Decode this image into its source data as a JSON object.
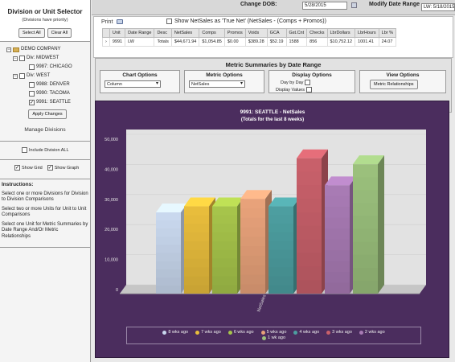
{
  "sidebar": {
    "title": "Division or Unit Selector",
    "subtitle": "(Divisions have priority)",
    "select_all": "Select All",
    "clear_all": "Clear All",
    "tree": {
      "company": "DEMO COMPANY",
      "div_midwest": "Div: MIDWEST",
      "chicago": "9987: CHICAGO",
      "div_west": "Div: WEST",
      "denver": "9988: DENVER",
      "tacoma": "9990: TACOMA",
      "seattle": "9991: SEATTLE"
    },
    "apply_changes": "Apply Changes",
    "manage_divisions": "Manage Divisions",
    "include_division_all": "Include Division ALL",
    "show_grid": "Show Grid",
    "show_graph": "Show Graph",
    "instructions_title": "Instructions:",
    "instructions": [
      "Select one or more Divisions for Division to Division Comparisons",
      "Select two or more Units for Unit to Unit Comparisons",
      "Select one Unit for Metric Summaries by Date Range And/Or Metric Relationships"
    ]
  },
  "topbar": {
    "change_dob_label": "Change DOB:",
    "dob_value": "5/28/2015",
    "modify_range_label": "Modify Date Range",
    "range_value": "LW: 5/18/2015"
  },
  "summary": {
    "print": "Print",
    "show_net_label": "Show NetSales as 'True Net' (NetSales - (Comps + Promos))",
    "headers": [
      "Unit",
      "Date Range",
      "Desc",
      "NetSales",
      "Comps",
      "Promos",
      "Voids",
      "GCA",
      "Gst.Cnt",
      "Checks",
      "LbrDollars",
      "LbrHours",
      "Lbr %"
    ],
    "row": {
      "arrow": "›",
      "cells": [
        "9991",
        "LW",
        "Totals",
        "$44,671.94",
        "$1,054.85",
        "$0.00",
        "$389.28",
        "$52.19",
        "1588",
        "856",
        "$10,752.12",
        "1001.41",
        "24.07"
      ]
    }
  },
  "metric": {
    "title": "Metric Summaries by Date Range",
    "chart_options": "Chart Options",
    "chart_type": "Column",
    "metric_options": "Metric Options",
    "metric_value": "NetSales",
    "display_options": "Display Options",
    "day_by_day": "Day by Day",
    "display_values": "Display Values",
    "view_options": "View Options",
    "metric_relationships": "Metric Relationships"
  },
  "chart_data": {
    "type": "bar",
    "title": "9991: SEATTLE - NetSales",
    "subtitle": "(Totals for the last 8 weeks)",
    "categories": [
      "NetSales"
    ],
    "ylim": [
      0,
      50000
    ],
    "yticks": [
      "0",
      "10,000",
      "20,000",
      "30,000",
      "40,000",
      "50,000"
    ],
    "series": [
      {
        "name": "8 wks ago",
        "values": [
          27000
        ],
        "color": "#c9d8ee"
      },
      {
        "name": "7 wks ago",
        "values": [
          29000
        ],
        "color": "#e8bd3c"
      },
      {
        "name": "6 wks ago",
        "values": [
          29000
        ],
        "color": "#a6c44b"
      },
      {
        "name": "5 wks ago",
        "values": [
          31500
        ],
        "color": "#e8a27a"
      },
      {
        "name": "4 wks ago",
        "values": [
          29000
        ],
        "color": "#4d9ea0"
      },
      {
        "name": "3 wks ago",
        "values": [
          45000
        ],
        "color": "#c8606a"
      },
      {
        "name": "2 wks ago",
        "values": [
          36000
        ],
        "color": "#a87bb4"
      },
      {
        "name": "1 wk ago",
        "values": [
          43000
        ],
        "color": "#9bc07c"
      }
    ]
  }
}
